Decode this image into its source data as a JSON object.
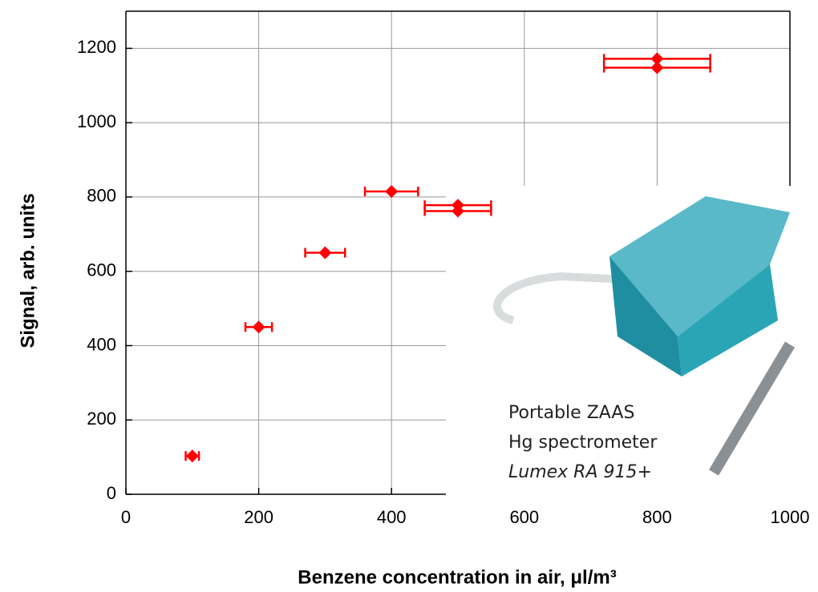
{
  "chart_data": {
    "type": "scatter",
    "x_label": "Benzene concentration in air, μl/m³",
    "y_label": "Signal, arb. units",
    "xlim": [
      0,
      1000
    ],
    "ylim": [
      0,
      1300
    ],
    "xticks": [
      0,
      200,
      400,
      600,
      800,
      1000
    ],
    "yticks": [
      0,
      200,
      400,
      600,
      800,
      1000,
      1200
    ],
    "grid": true,
    "series": [
      {
        "color": "#ff0000",
        "x": [
          100,
          200,
          300,
          400,
          500,
          500,
          800,
          800
        ],
        "values": [
          103,
          450,
          650,
          815,
          778,
          762,
          1172,
          1148
        ],
        "xerr": [
          10,
          20,
          30,
          40,
          50,
          50,
          80,
          80
        ]
      }
    ],
    "inset": {
      "lines": [
        "Portable ZAAS",
        "Hg spectrometer",
        "Lumex RA 915+"
      ]
    }
  }
}
